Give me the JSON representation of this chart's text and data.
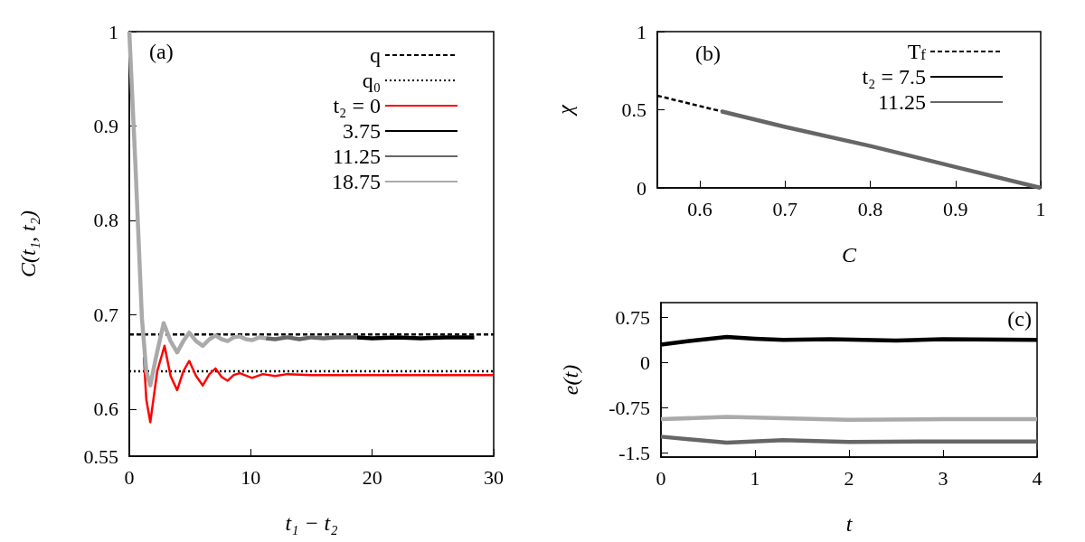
{
  "chart_data": [
    {
      "type": "line",
      "xlabel": "t₁ − t₂",
      "ylabel": "C(t₁, t₂)",
      "xlim": [
        0,
        30
      ],
      "xticks": [
        0,
        10,
        20,
        30
      ],
      "ylim": [
        0.55,
        1
      ],
      "yticks": [
        0.55,
        0.6,
        0.7,
        0.8,
        0.9,
        1
      ],
      "legend": "top right",
      "annotations": [
        "(a)"
      ],
      "series": [
        {
          "name": "q",
          "color": "#000000",
          "line_style": "dashed",
          "x": [
            0,
            30
          ],
          "values": [
            0.679,
            0.679
          ]
        },
        {
          "name": "q₀",
          "color": "#000000",
          "line_style": "dotted",
          "x": [
            0,
            30
          ],
          "values": [
            0.64,
            0.64
          ]
        },
        {
          "name": "t₂ = 0",
          "color": "#ff0000",
          "x": [
            1.2,
            1.4,
            1.73,
            2.3,
            2.9,
            3.4,
            3.94,
            4.45,
            4.93,
            5.5,
            6.05,
            6.6,
            7.1,
            7.6,
            8.1,
            8.6,
            9.1,
            10.1,
            11,
            12,
            13,
            15,
            20,
            25,
            30
          ],
          "values": [
            0.655,
            0.61,
            0.586,
            0.64,
            0.667,
            0.635,
            0.62,
            0.64,
            0.651,
            0.635,
            0.625,
            0.637,
            0.643,
            0.634,
            0.63,
            0.636,
            0.638,
            0.633,
            0.637,
            0.635,
            0.637,
            0.636,
            0.636,
            0.636,
            0.636
          ]
        },
        {
          "name": "3.75",
          "color": "#000000",
          "x": [
            18.75,
            20,
            22,
            24,
            26,
            28.4
          ],
          "values": [
            0.676,
            0.675,
            0.676,
            0.675,
            0.676,
            0.676
          ]
        },
        {
          "name": "11.25",
          "color": "#666666",
          "x": [
            11.25,
            12,
            13,
            14,
            15,
            16,
            17,
            18.75
          ],
          "values": [
            0.675,
            0.674,
            0.676,
            0.674,
            0.676,
            0.675,
            0.676,
            0.676
          ]
        },
        {
          "name": "18.75",
          "color": "#aaaaaa",
          "x": [
            0,
            0.5,
            1.04,
            1.4,
            1.73,
            2.2,
            2.83,
            3.4,
            3.94,
            4.45,
            4.93,
            5.5,
            6.05,
            6.6,
            7.1,
            7.6,
            8.1,
            8.6,
            9.1,
            9.6,
            10.1,
            10.7,
            11.25
          ],
          "values": [
            1,
            0.86,
            0.696,
            0.64,
            0.625,
            0.655,
            0.691,
            0.672,
            0.66,
            0.672,
            0.681,
            0.672,
            0.667,
            0.674,
            0.678,
            0.674,
            0.672,
            0.676,
            0.677,
            0.674,
            0.673,
            0.676,
            0.675
          ]
        }
      ]
    },
    {
      "type": "line",
      "xlabel": "C",
      "ylabel": "χ",
      "xlim": [
        0.55,
        1
      ],
      "xticks": [
        0.6,
        0.7,
        0.8,
        0.9,
        1
      ],
      "ylim": [
        0,
        1
      ],
      "yticks": [
        0,
        0.5,
        1
      ],
      "legend": "top right",
      "annotations": [
        "(b)"
      ],
      "series": [
        {
          "name": "T$_{f}$",
          "color": "#000000",
          "line_style": "dashed",
          "x": [
            0.55,
            0.625
          ],
          "values": [
            0.59,
            0.49
          ]
        },
        {
          "name": "t₂ = 7.5",
          "color": "#000000"
        },
        {
          "name": "11.25",
          "color": "#666666",
          "x": [
            0.625,
            0.7,
            0.8,
            0.9,
            1
          ],
          "values": [
            0.49,
            0.39,
            0.268,
            0.134,
            0
          ]
        }
      ]
    },
    {
      "type": "line",
      "xlabel": "t",
      "ylabel": "e(t)",
      "xlim": [
        0,
        4
      ],
      "xticks": [
        0,
        1,
        2,
        3,
        4
      ],
      "ylim": [
        -1.57,
        1
      ],
      "yticks": [
        -1.5,
        -0.75,
        0,
        0.75
      ],
      "annotations": [
        "(c)"
      ],
      "series": [
        {
          "color": "#000000",
          "x": [
            0,
            0.3,
            0.7,
            1,
            1.3,
            1.8,
            2.5,
            3,
            4
          ],
          "values": [
            0.3,
            0.36,
            0.43,
            0.4,
            0.38,
            0.39,
            0.37,
            0.39,
            0.38
          ]
        },
        {
          "color": "#aaaaaa",
          "x": [
            0,
            0.7,
            2,
            3,
            4
          ],
          "values": [
            -0.94,
            -0.9,
            -0.95,
            -0.94,
            -0.94
          ]
        },
        {
          "color": "#666666",
          "x": [
            0,
            0.7,
            1.3,
            2,
            3,
            4
          ],
          "values": [
            -1.23,
            -1.33,
            -1.29,
            -1.32,
            -1.31,
            -1.31
          ]
        }
      ]
    }
  ]
}
